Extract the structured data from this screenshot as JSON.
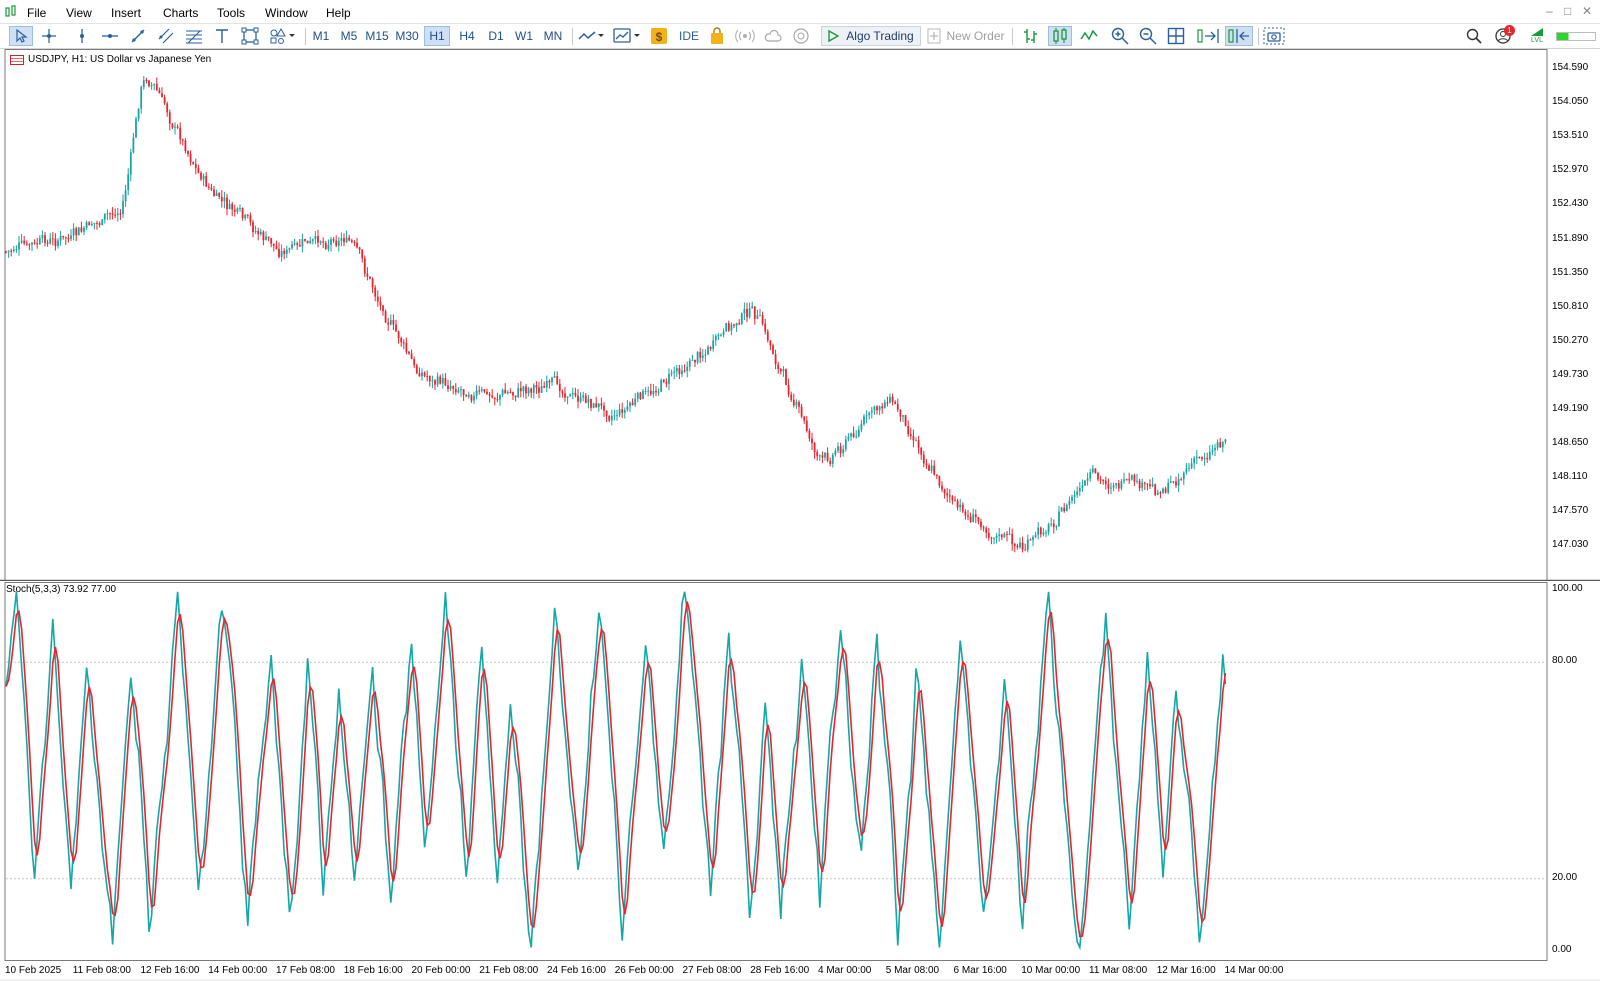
{
  "menu": {
    "items": [
      "File",
      "View",
      "Insert",
      "Charts",
      "Tools",
      "Window",
      "Help"
    ]
  },
  "toolbar": {
    "timeframes": [
      "M1",
      "M5",
      "M15",
      "M30",
      "H1",
      "H4",
      "D1",
      "W1",
      "MN"
    ],
    "active_timeframe": "H1",
    "ide_label": "IDE",
    "algo_trading_label": "Algo Trading",
    "new_order_label": "New Order",
    "notification_count": "1",
    "lvl_label": "LVL"
  },
  "colors": {
    "bull": "#1aa3a3",
    "bear": "#e8242e",
    "main_line": "#14a7a7",
    "signal_line": "#e8242e",
    "grid_level": "#c8c8c8"
  },
  "chart": {
    "symbol_title": "USDJPY, H1:  US Dollar vs Japanese Yen",
    "price_axis": [
      "154.590",
      "154.050",
      "153.510",
      "152.970",
      "152.430",
      "151.890",
      "151.350",
      "150.810",
      "150.270",
      "149.730",
      "149.190",
      "148.650",
      "148.110",
      "147.570",
      "147.030"
    ],
    "time_axis": [
      "10 Feb 2025",
      "11 Feb 08:00",
      "12 Feb 16:00",
      "14 Feb 00:00",
      "17 Feb 08:00",
      "18 Feb 16:00",
      "20 Feb 00:00",
      "21 Feb 08:00",
      "24 Feb 16:00",
      "26 Feb 00:00",
      "27 Feb 08:00",
      "28 Feb 16:00",
      "4 Mar 00:00",
      "5 Mar 08:00",
      "6 Mar 16:00",
      "10 Mar 00:00",
      "11 Mar 08:00",
      "12 Mar 16:00",
      "14 Mar 00:00"
    ]
  },
  "stochastic": {
    "label": "Stoch(5,3,3) 73.92 77.00",
    "axis": [
      "100.00",
      "80.00",
      "20.00",
      "0.00"
    ],
    "levels": [
      80,
      20
    ]
  },
  "chart_data": [
    {
      "type": "candlestick",
      "title": "USDJPY, H1:  US Dollar vs Japanese Yen",
      "y_range": [
        146.75,
        154.75
      ],
      "x_range": [
        "10 Feb 2025",
        "14 Mar 00:00"
      ],
      "path_points": [
        [
          "10 Feb 2025",
          151.7
        ],
        [
          "11 Feb 08:00",
          151.95
        ],
        [
          "12 Feb 08:00",
          152.4
        ],
        [
          "12 Feb 16:00",
          154.6
        ],
        [
          "14 Feb 00:00",
          152.6
        ],
        [
          "17 Feb 08:00",
          151.7
        ],
        [
          "18 Feb 16:00",
          151.95
        ],
        [
          "20 Feb 00:00",
          149.8
        ],
        [
          "21 Feb 08:00",
          149.4
        ],
        [
          "24 Feb 16:00",
          149.6
        ],
        [
          "26 Feb 00:00",
          149.1
        ],
        [
          "27 Feb 08:00",
          149.9
        ],
        [
          "28 Feb 16:00",
          150.8
        ],
        [
          "4 Mar 00:00",
          148.3
        ],
        [
          "5 Mar 08:00",
          149.4
        ],
        [
          "6 Mar 16:00",
          147.6
        ],
        [
          "10 Mar 00:00",
          147.0
        ],
        [
          "11 Mar 08:00",
          148.1
        ],
        [
          "12 Mar 16:00",
          147.9
        ],
        [
          "14 Mar 00:00",
          148.8
        ]
      ]
    },
    {
      "type": "line",
      "title": "Stoch(5,3,3) 73.92 77.00",
      "y_range": [
        0,
        100
      ],
      "levels": [
        80,
        20
      ],
      "series": [
        {
          "name": "Main",
          "current": 73.92
        },
        {
          "name": "Signal",
          "current": 77.0
        }
      ]
    }
  ]
}
